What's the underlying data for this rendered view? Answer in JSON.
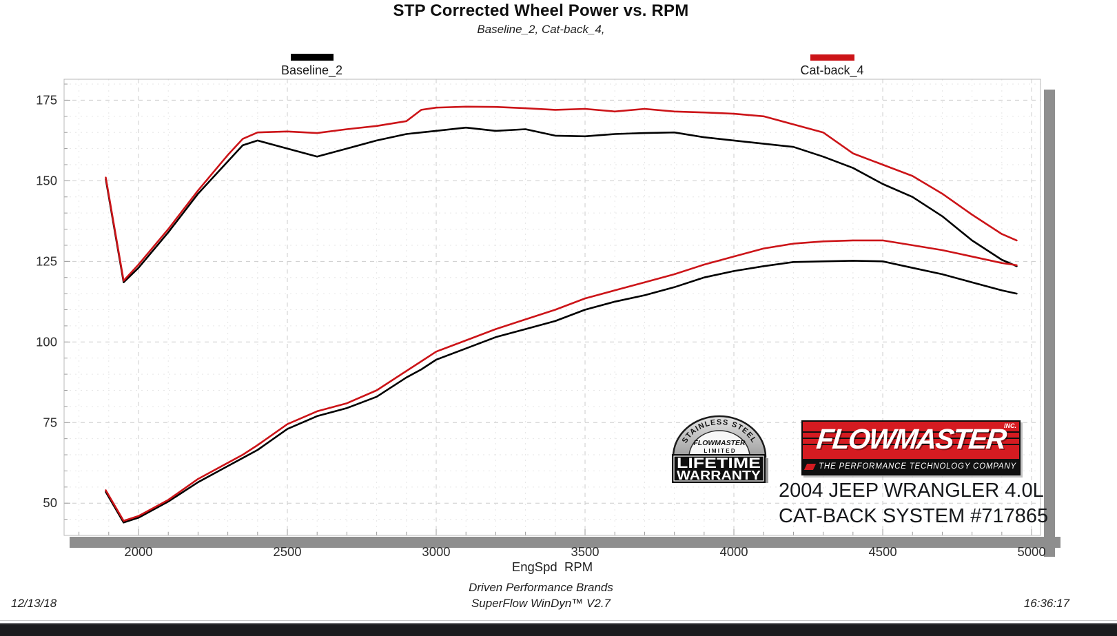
{
  "header": {
    "title": "STP Corrected Wheel Power vs. RPM",
    "subtitle": "Baseline_2, Cat-back_4,"
  },
  "legend": {
    "items": [
      {
        "label": "Baseline_2",
        "color": "#000000"
      },
      {
        "label": "Cat-back_4",
        "color": "#cc1418"
      }
    ]
  },
  "axis": {
    "xlabel": "EngSpd  RPM"
  },
  "footer": {
    "line1": "Driven Performance Brands",
    "line2": "SuperFlow WinDyn™ V2.7",
    "date": "12/13/18",
    "time": "16:36:17"
  },
  "branding": {
    "badge": {
      "arch": "STAINLESS STEEL",
      "brand": "FLOWMASTER",
      "limited": "L I M I T E D",
      "line1": "LIFETIME",
      "line2": "WARRANTY"
    },
    "logo": {
      "name": "FLOWMASTER",
      "inc": "INC.",
      "tagline": "THE PERFORMANCE TECHNOLOGY COMPANY",
      "red": "#d51b21"
    },
    "vehicle_line1": "2004 JEEP WRANGLER 4.0L",
    "vehicle_line2": "CAT-BACK SYSTEM #717865"
  },
  "chart_data": {
    "type": "line",
    "title": "STP Corrected Wheel Power vs. RPM",
    "subtitle": "Baseline_2, Cat-back_4,",
    "xlabel": "EngSpd RPM",
    "ylabel": "",
    "legend_position": "top",
    "grid": "dashed-light",
    "x_range": [
      1750,
      5030
    ],
    "y_range": [
      40,
      181.5
    ],
    "x_major_ticks": [
      2000,
      2500,
      3000,
      3500,
      4000,
      4500,
      5000
    ],
    "y_major_ticks": [
      50,
      75,
      100,
      125,
      150,
      175
    ],
    "x_minor_step": 100,
    "y_minor_step": 5,
    "rpm": [
      1890,
      1950,
      2000,
      2100,
      2200,
      2300,
      2350,
      2400,
      2500,
      2600,
      2700,
      2800,
      2900,
      2950,
      3000,
      3100,
      3200,
      3300,
      3400,
      3500,
      3600,
      3700,
      3800,
      3900,
      4000,
      4100,
      4200,
      4300,
      4400,
      4500,
      4600,
      4700,
      4800,
      4900,
      4950
    ],
    "series": [
      {
        "name": "Baseline_2",
        "color": "#000000",
        "upper": [
          150.5,
          118.5,
          123,
          134,
          146,
          156,
          161,
          162.5,
          160,
          157.5,
          160,
          162.5,
          164.5,
          165,
          165.5,
          166.5,
          165.5,
          166,
          164,
          163.8,
          164.5,
          164.8,
          165,
          163.5,
          162.5,
          161.5,
          160.5,
          157.5,
          154,
          149,
          145,
          139,
          131.5,
          125.5,
          123.5
        ],
        "lower": [
          53.5,
          44,
          45.5,
          50.5,
          56.5,
          61.5,
          64,
          66.5,
          73,
          77,
          79.5,
          83,
          89,
          91.5,
          94.5,
          98,
          101.5,
          104,
          106.5,
          110,
          112.5,
          114.5,
          117,
          120,
          122,
          123.5,
          124.8,
          125,
          125.2,
          125,
          123,
          121,
          118.5,
          116,
          115
        ]
      },
      {
        "name": "Cat-back_4",
        "color": "#cc1418",
        "upper": [
          151,
          119,
          124,
          135,
          147,
          158,
          163,
          165,
          165.3,
          164.8,
          166,
          167,
          168.5,
          172,
          172.7,
          173,
          172.9,
          172.5,
          172,
          172.3,
          171.5,
          172.3,
          171.5,
          171.2,
          170.8,
          170,
          167.5,
          165,
          158.5,
          155,
          151.5,
          146,
          139.5,
          133.5,
          131.5
        ],
        "lower": [
          54,
          44.5,
          46,
          51,
          57.5,
          62.5,
          65,
          68,
          74.5,
          78.5,
          81,
          85,
          91,
          94,
          97,
          100.5,
          104,
          107,
          110,
          113.5,
          116,
          118.5,
          121,
          124,
          126.5,
          129,
          130.5,
          131.2,
          131.5,
          131.5,
          130,
          128.5,
          126.5,
          124.5,
          123.8
        ]
      }
    ]
  }
}
